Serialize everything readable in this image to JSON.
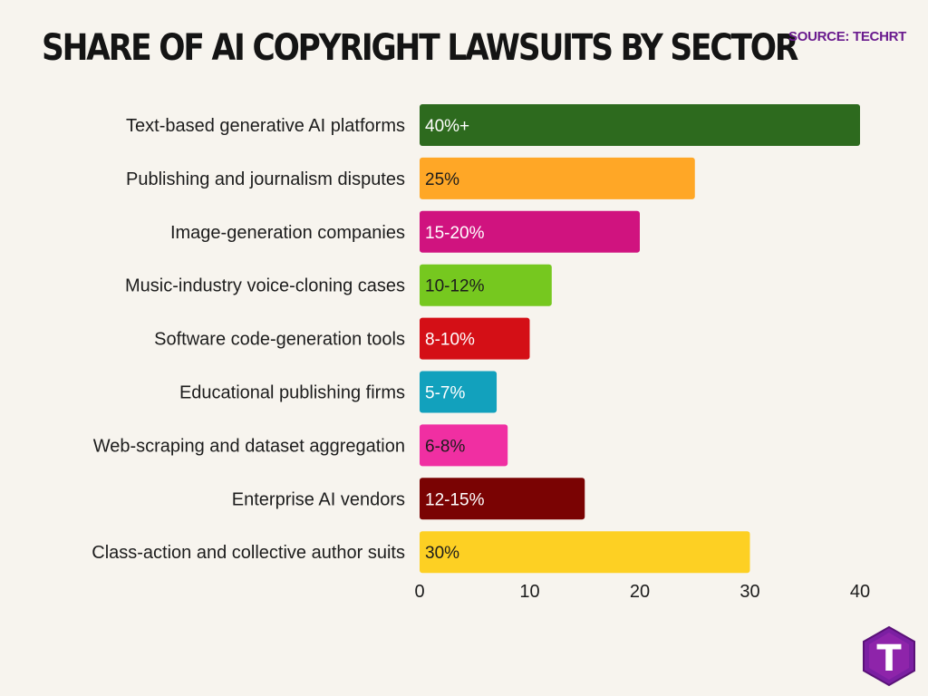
{
  "title": "SHARE OF AI COPYRIGHT LAWSUITS BY SECTOR",
  "source": "SOURCE: TECHRT",
  "logo_letter": "T",
  "colors": {
    "background": "#f7f4ee",
    "brand": "#6a1b8e"
  },
  "chart_data": {
    "type": "bar",
    "orientation": "horizontal",
    "categories": [
      "Text-based generative AI platforms",
      "Publishing and journalism disputes",
      "Image-generation companies",
      "Music-industry voice-cloning cases",
      "Software code-generation tools",
      "Educational publishing firms",
      "Web-scraping and dataset aggregation",
      "Enterprise AI vendors",
      "Class-action and collective author suits"
    ],
    "values": [
      40,
      25,
      20,
      12,
      10,
      7,
      8,
      15,
      30
    ],
    "data_labels": [
      "40%+",
      "25%",
      "15-20%",
      "10-12%",
      "8-10%",
      "5-7%",
      "6-8%",
      "12-15%",
      "30%"
    ],
    "bar_colors": [
      "#2d6a1e",
      "#ffa726",
      "#d0137f",
      "#76c81f",
      "#d40f16",
      "#12a1bd",
      "#f02fa2",
      "#7a0303",
      "#fdd023"
    ],
    "label_colors": [
      "#ffffff",
      "#1c1c1c",
      "#ffffff",
      "#1c1c1c",
      "#ffffff",
      "#ffffff",
      "#1c1c1c",
      "#ffffff",
      "#1c1c1c"
    ],
    "xlim": [
      0,
      40
    ],
    "xticks": [
      0,
      10,
      20,
      30,
      40
    ],
    "grid": false,
    "legend": "none"
  }
}
